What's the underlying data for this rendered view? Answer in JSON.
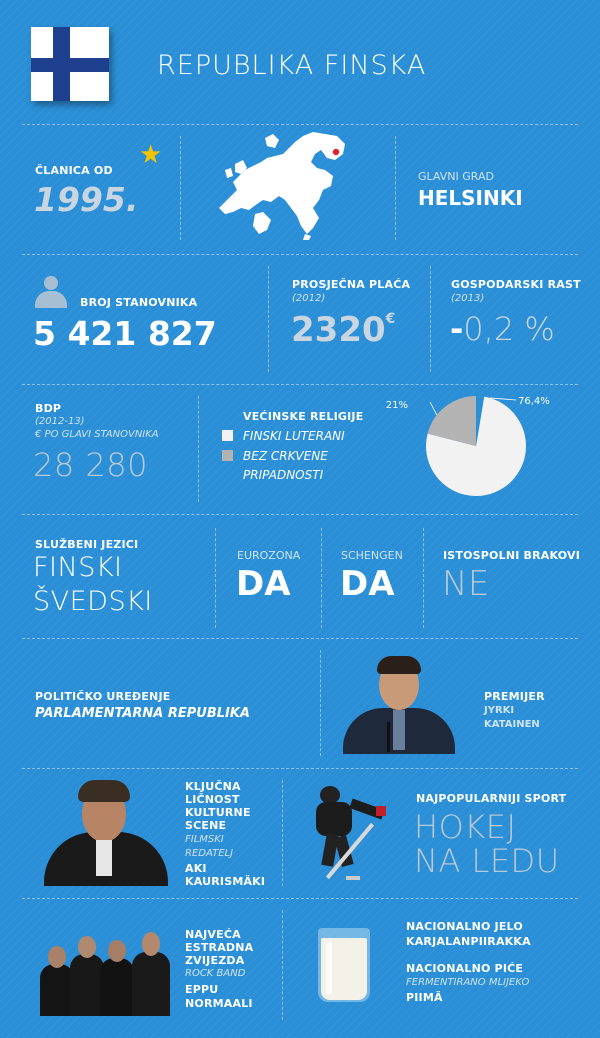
{
  "title": "REPUBLIKA FINSKA",
  "eu": {
    "label": "ČLANICA OD",
    "year": "1995."
  },
  "capital": {
    "label": "GLAVNI GRAD",
    "value": "HELSINKI"
  },
  "population": {
    "label": "BROJ STANOVNIKA",
    "value": "5 421 827"
  },
  "salary": {
    "label": "PROSJEČNA PLAĆA",
    "year": "(2012)",
    "value": "2320",
    "unit": "€"
  },
  "growth": {
    "label": "GOSPODARSKI RAST",
    "year": "(2013)",
    "sign": "-",
    "value": "0,2 %"
  },
  "gdp": {
    "label": "BDP",
    "years": "(2012-13)",
    "unit": "€ PO GLAVI STANOVNIKA",
    "value": "28 280"
  },
  "religion": {
    "label": "VEĆINSKE RELIGIJE",
    "items": [
      "FINSKI LUTERANI",
      "BEZ CRKVENE",
      "PRIPADNOSTI"
    ]
  },
  "chart_data": {
    "type": "pie",
    "categories": [
      "FINSKI LUTERANI",
      "BEZ CRKVENE PRIPADNOSTI",
      ""
    ],
    "values": [
      76.4,
      21,
      2.6
    ],
    "data_labels": [
      "76,4%",
      "21%",
      ""
    ],
    "colors": [
      "#f2f2f2",
      "#b3b3b3",
      "#2a8fd6"
    ]
  },
  "languages": {
    "label": "SLUŽBENI JEZICI",
    "items": [
      "FINSKI",
      "ŠVEDSKI"
    ]
  },
  "eurozone": {
    "label": "EUROZONA",
    "value": "DA"
  },
  "schengen": {
    "label": "SCHENGEN",
    "value": "DA"
  },
  "samesex": {
    "label": "ISTOSPOLNI BRAKOVI",
    "value": "NE"
  },
  "politics": {
    "label": "POLITIČKO UREĐENJE",
    "value": "PARLAMENTARNA REPUBLIKA"
  },
  "pm": {
    "label": "PREMIJER",
    "name1": "JYRKI",
    "name2": "KATAINEN"
  },
  "culture": {
    "label1": "KLJUČNA",
    "label2": "LIČNOST",
    "label3": "KULTURNE",
    "label4": "SCENE",
    "role1": "FILMSKI",
    "role2": "REDATELJ",
    "name1": "AKI",
    "name2": "KAURISMÄKI"
  },
  "sport": {
    "label": "NAJPOPULARNIJI SPORT",
    "value1": "HOKEJ",
    "value2": "NA LEDU"
  },
  "music": {
    "label1": "NAJVEĆA",
    "label2": "ESTRADNA",
    "label3": "ZVIJEZDA",
    "role": "ROCK BAND",
    "name1": "EPPU",
    "name2": "NORMAALI"
  },
  "food": {
    "dish_label": "NACIONALNO JELO",
    "dish": "KARJALANPIIRAKKA",
    "drink_label": "NACIONALNO PIĆE",
    "drink_desc": "FERMENTIRANO MLIJEKO",
    "drink": "PIIMÄ"
  },
  "colors": {
    "background": "#2a8fd6",
    "flag_blue": "#1f3f8f",
    "star": "#f4c400",
    "grey_text": "#b9c9d6"
  }
}
